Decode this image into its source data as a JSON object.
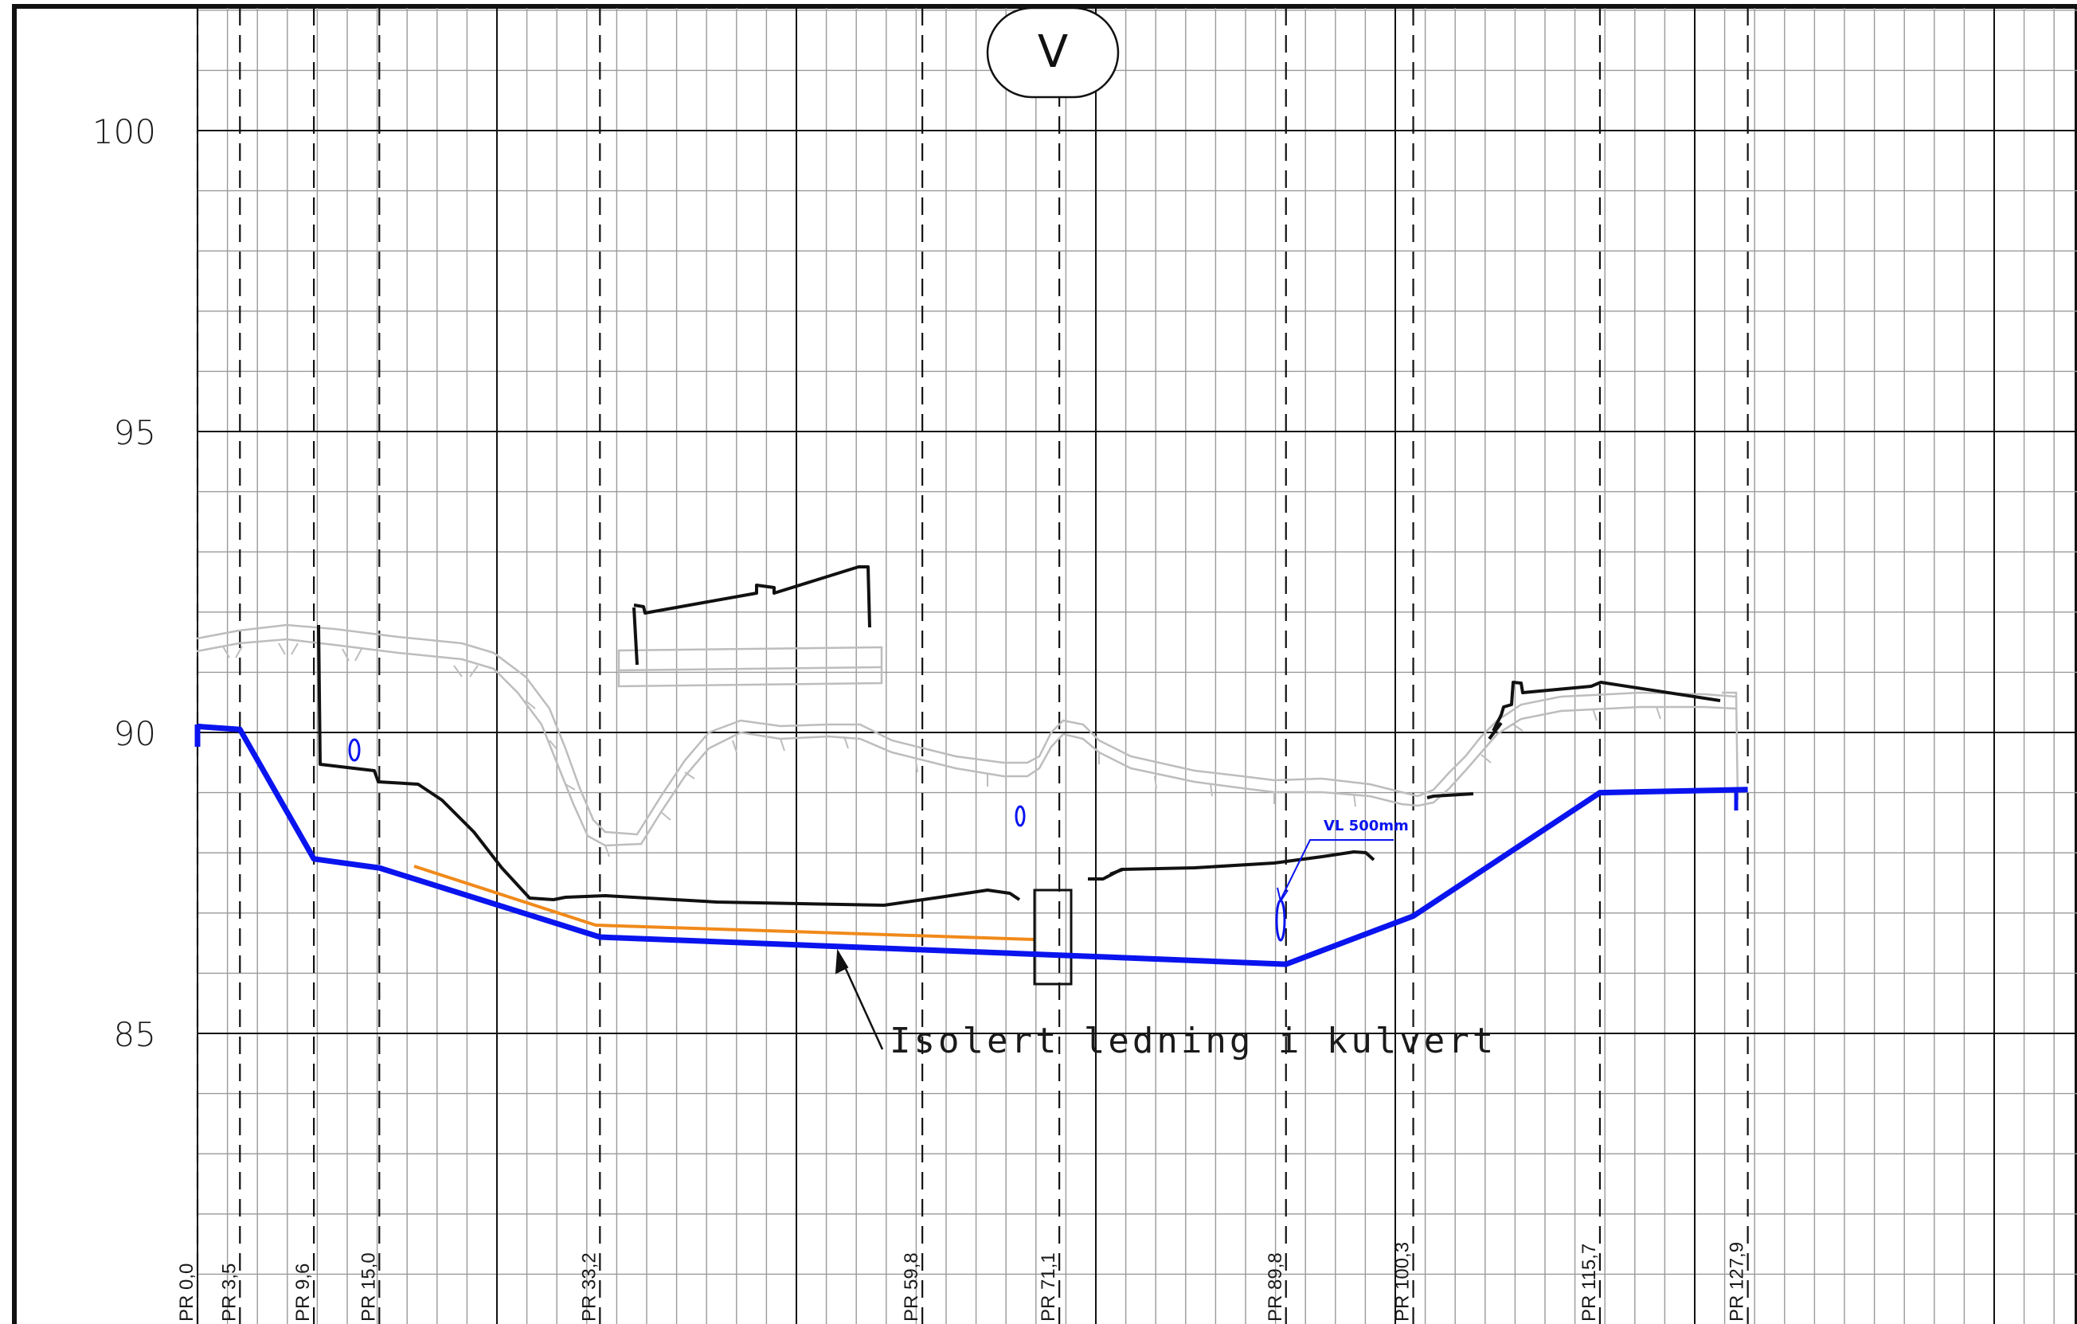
{
  "profile": {
    "marker_label": "V",
    "elevations": [
      {
        "value": 100,
        "label": "100"
      },
      {
        "value": 95,
        "label": "95"
      },
      {
        "value": 90,
        "label": "90"
      },
      {
        "value": 85,
        "label": "85"
      }
    ],
    "stations": [
      {
        "value": 0.0,
        "label": "PR 0,0"
      },
      {
        "value": 3.5,
        "label": "PR 3,5"
      },
      {
        "value": 9.6,
        "label": "PR 9,6"
      },
      {
        "value": 15.0,
        "label": "PR 15,0"
      },
      {
        "value": 33.2,
        "label": "PR 33,2"
      },
      {
        "value": 59.8,
        "label": "PR 59,8"
      },
      {
        "value": 71.1,
        "label": "PR 71,1"
      },
      {
        "value": 89.8,
        "label": "PR 89,8"
      },
      {
        "value": 100.3,
        "label": "PR 100,3"
      },
      {
        "value": 115.7,
        "label": "PR 115,7"
      },
      {
        "value": 127.9,
        "label": "PR 127,9"
      }
    ],
    "pipe_profile": [
      [
        0.0,
        90.1
      ],
      [
        3.5,
        90.05
      ],
      [
        9.6,
        87.9
      ],
      [
        15.0,
        87.75
      ],
      [
        33.2,
        86.6
      ],
      [
        71.1,
        86.3
      ],
      [
        89.8,
        86.15
      ],
      [
        100.3,
        86.95
      ],
      [
        115.7,
        89.0
      ],
      [
        127.9,
        89.05
      ]
    ],
    "annotation": "Isolert ledning i kulvert",
    "pipe_callout": "VL 500mm",
    "colors": {
      "pipe": "#0a14ee",
      "second_line": "#f08a1a",
      "existing_surface": "#111111",
      "terrain": "#bdbdbd",
      "grid": "#9a9a9a"
    }
  }
}
